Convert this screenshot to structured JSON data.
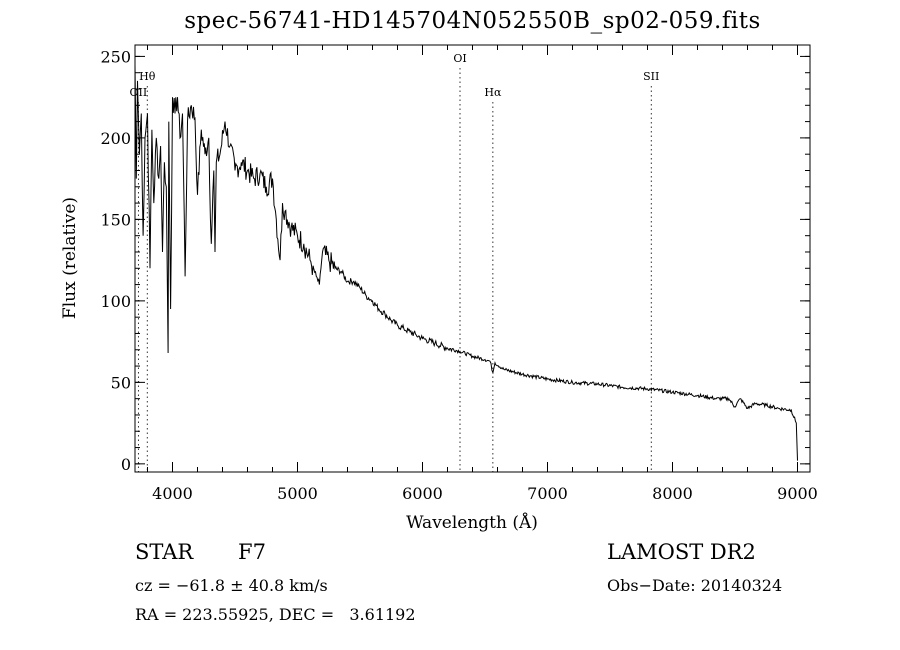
{
  "chart_data": {
    "type": "line",
    "title": "spec-56741-HD145704N052550B_sp02-059.fits",
    "xlabel": "Wavelength (Å)",
    "ylabel": "Flux (relative)",
    "xlim": [
      3700,
      9100
    ],
    "ylim": [
      -5,
      257
    ],
    "xticks": [
      4000,
      5000,
      6000,
      7000,
      8000,
      9000
    ],
    "yticks": [
      0,
      50,
      100,
      150,
      200,
      250
    ],
    "grid": false,
    "series": [
      {
        "values_note": "",
        "x": [
          3700,
          3710,
          3720,
          3735,
          3750,
          3765,
          3780,
          3800,
          3820,
          3835,
          3850,
          3870,
          3890,
          3905,
          3920,
          3935,
          3950,
          3965,
          3970,
          3985,
          4000,
          4020,
          4040,
          4060,
          4080,
          4101,
          4120,
          4150,
          4180,
          4200,
          4230,
          4260,
          4290,
          4310,
          4330,
          4340,
          4350,
          4380,
          4420,
          4460,
          4500,
          4550,
          4600,
          4650,
          4700,
          4750,
          4800,
          4830,
          4861,
          4880,
          4900,
          4950,
          5000,
          5050,
          5100,
          5150,
          5175,
          5200,
          5250,
          5300,
          5350,
          5400,
          5450,
          5500,
          5550,
          5600,
          5650,
          5700,
          5750,
          5800,
          5850,
          5900,
          5950,
          6000,
          6100,
          6200,
          6300,
          6400,
          6500,
          6540,
          6563,
          6580,
          6650,
          6800,
          7000,
          7200,
          7400,
          7600,
          7800,
          8000,
          8200,
          8350,
          8450,
          8498,
          8542,
          8600,
          8662,
          8750,
          8850,
          8950,
          8990,
          9000
        ],
        "y": [
          245,
          175,
          235,
          190,
          215,
          140,
          200,
          215,
          120,
          205,
          160,
          200,
          175,
          195,
          130,
          185,
          170,
          68,
          210,
          95,
          225,
          215,
          225,
          200,
          215,
          115,
          210,
          220,
          212,
          165,
          205,
          190,
          200,
          135,
          180,
          130,
          185,
          190,
          210,
          195,
          180,
          185,
          180,
          175,
          178,
          170,
          175,
          150,
          125,
          160,
          155,
          145,
          140,
          135,
          125,
          115,
          110,
          130,
          125,
          120,
          118,
          112,
          112,
          108,
          103,
          100,
          95,
          92,
          88,
          85,
          83,
          81,
          79,
          77,
          74,
          71,
          69,
          66,
          64,
          63,
          56,
          62,
          58,
          55,
          52,
          50,
          49,
          47,
          46,
          44,
          42,
          40,
          40,
          35,
          40,
          34,
          37,
          36,
          34,
          33,
          25,
          2
        ]
      }
    ],
    "annotations": [
      {
        "label": "OII",
        "x": 3727,
        "row": 3
      },
      {
        "label": "Hθ",
        "x": 3798,
        "row": 2
      },
      {
        "label": "OI",
        "x": 6300,
        "row": 1
      },
      {
        "label": "Hα",
        "x": 6563,
        "row": 3
      },
      {
        "label": "SII",
        "x": 7830,
        "row": 2
      }
    ]
  },
  "footer": {
    "object_class": "STAR",
    "object_subclass": "F7",
    "survey": "LAMOST DR2",
    "cz": "cz = −61.8 ± 40.8 km/s",
    "obs_date": "Obs−Date: 20140324",
    "radec": "RA = 223.55925, DEC =   3.61192"
  }
}
